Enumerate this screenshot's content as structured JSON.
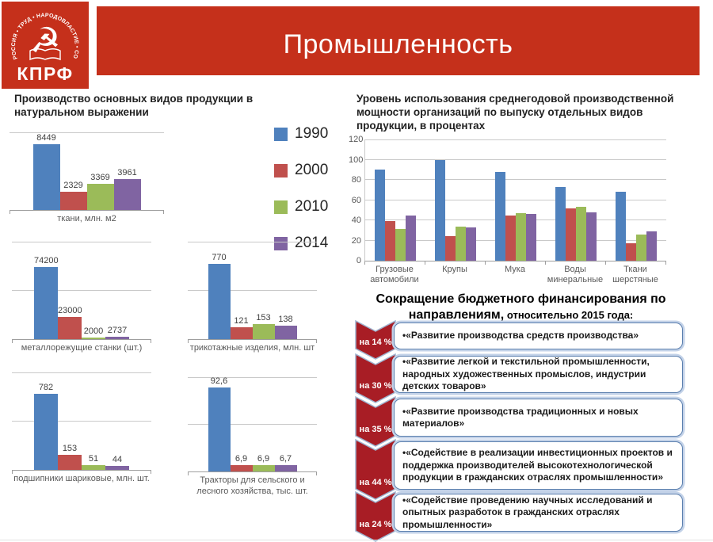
{
  "logo": {
    "party": "КПРФ",
    "ring_text": "РОССИЯ • ТРУД • НАРОДОВЛАСТИЕ • СОЦИАЛИЗМ",
    "emblem": "hammer-and-sickle-over-open-book"
  },
  "header": {
    "title": "Промышленность"
  },
  "colors": {
    "banner_red": "#c5301b",
    "arrow_red": "#a81d25",
    "arrow_outline": "#9fb3cf",
    "box_border_blue": "#5b7fae",
    "series": [
      "#4f81bd",
      "#c0504d",
      "#9bbb59",
      "#8064a2"
    ]
  },
  "production_section": {
    "title": "Производство основных видов продукции в натуральном выражении",
    "legend": [
      "1990",
      "2000",
      "2010",
      "2014"
    ]
  },
  "capacity_section": {
    "title": "Уровень использования среднегодовой производственной мощности организаций по выпуску отдельных видов продукции, в процентах"
  },
  "reduction_section": {
    "title_main": "Сокращение бюджетного финансирования по направлениям,",
    "title_sub": " относительно 2015 года:",
    "items": [
      {
        "pct": "на 14 %",
        "text": "•«Развитие производства средств производства»"
      },
      {
        "pct": "на 30 %",
        "text": "•«Развитие легкой и текстильной промышленности, народных художественных промыслов, индустрии детских товаров»"
      },
      {
        "pct": "на 35 %",
        "text": "•«Развитие производства традиционных и новых материалов»"
      },
      {
        "pct": "на 44 %",
        "text": "•«Содействие в реализации инвестиционных проектов и поддержка производителей высокотехнологической продукции в гражданских отраслях промышленности»"
      },
      {
        "pct": "на 24 %",
        "text": "•«Содействие проведению научных исследований и опытных разработок в гражданских отраслях промышленности»"
      }
    ]
  },
  "chart_data": [
    {
      "type": "bar",
      "title": "ткани, млн. м2",
      "categories": [
        "1990",
        "2000",
        "2010",
        "2014"
      ],
      "values": [
        8449,
        2329,
        3369,
        3961
      ],
      "labels": [
        "8449",
        "2329",
        "3369",
        "3961"
      ],
      "ylim": [
        0,
        10000
      ],
      "gridline_values": [
        10000
      ]
    },
    {
      "type": "bar",
      "title": "металлорежущие станки (шт.)",
      "categories": [
        "1990",
        "2000",
        "2010",
        "2014"
      ],
      "values": [
        74200,
        23000,
        2000,
        2737
      ],
      "labels": [
        "74200",
        "23000",
        "2000",
        "2737"
      ],
      "ylim": [
        0,
        100000
      ],
      "gridline_values": [
        50000,
        100000
      ]
    },
    {
      "type": "bar",
      "title": "трикотажные изделия, млн. шт",
      "categories": [
        "1990",
        "2000",
        "2010",
        "2014"
      ],
      "values": [
        770,
        121,
        153,
        138
      ],
      "labels": [
        "770",
        "121",
        "153",
        "138"
      ],
      "ylim": [
        0,
        1000
      ],
      "gridline_values": [
        500,
        1000
      ]
    },
    {
      "type": "bar",
      "title": "подшипники шариковые, млн. шт.",
      "categories": [
        "1990",
        "2000",
        "2010",
        "2014"
      ],
      "values": [
        782,
        153,
        51,
        44
      ],
      "labels": [
        "782",
        "153",
        "51",
        "44"
      ],
      "ylim": [
        0,
        1000
      ],
      "gridline_values": [
        500,
        1000
      ]
    },
    {
      "type": "bar",
      "title": "Тракторы для сельского и лесного хозяйства, тыс. шт.",
      "categories": [
        "1990",
        "2000",
        "2010",
        "2014"
      ],
      "values": [
        92.6,
        6.9,
        6.9,
        6.7
      ],
      "labels": [
        "92,6",
        "6,9",
        "6,9",
        "6,7"
      ],
      "ylim": [
        0,
        100
      ],
      "gridline_values": [
        50,
        100
      ]
    },
    {
      "type": "bar",
      "title": "Уровень использования среднегодовой производственной мощности организаций по выпуску отдельных видов продукции, в процентах",
      "categories": [
        "Грузовые автомобили",
        "Крупы",
        "Мука",
        "Воды минеральные",
        "Ткани шерстяные"
      ],
      "series": [
        {
          "name": "1990",
          "values": [
            90,
            100,
            88,
            73,
            68
          ]
        },
        {
          "name": "2000",
          "values": [
            39,
            24,
            45,
            52,
            17
          ]
        },
        {
          "name": "2010",
          "values": [
            31,
            34,
            47,
            53,
            26
          ]
        },
        {
          "name": "2014",
          "values": [
            45,
            33,
            46,
            48,
            29
          ]
        }
      ],
      "ylim": [
        0,
        120
      ],
      "yticks": [
        0,
        20,
        40,
        60,
        80,
        100,
        120
      ],
      "legend_position": "none",
      "grid": true
    }
  ]
}
